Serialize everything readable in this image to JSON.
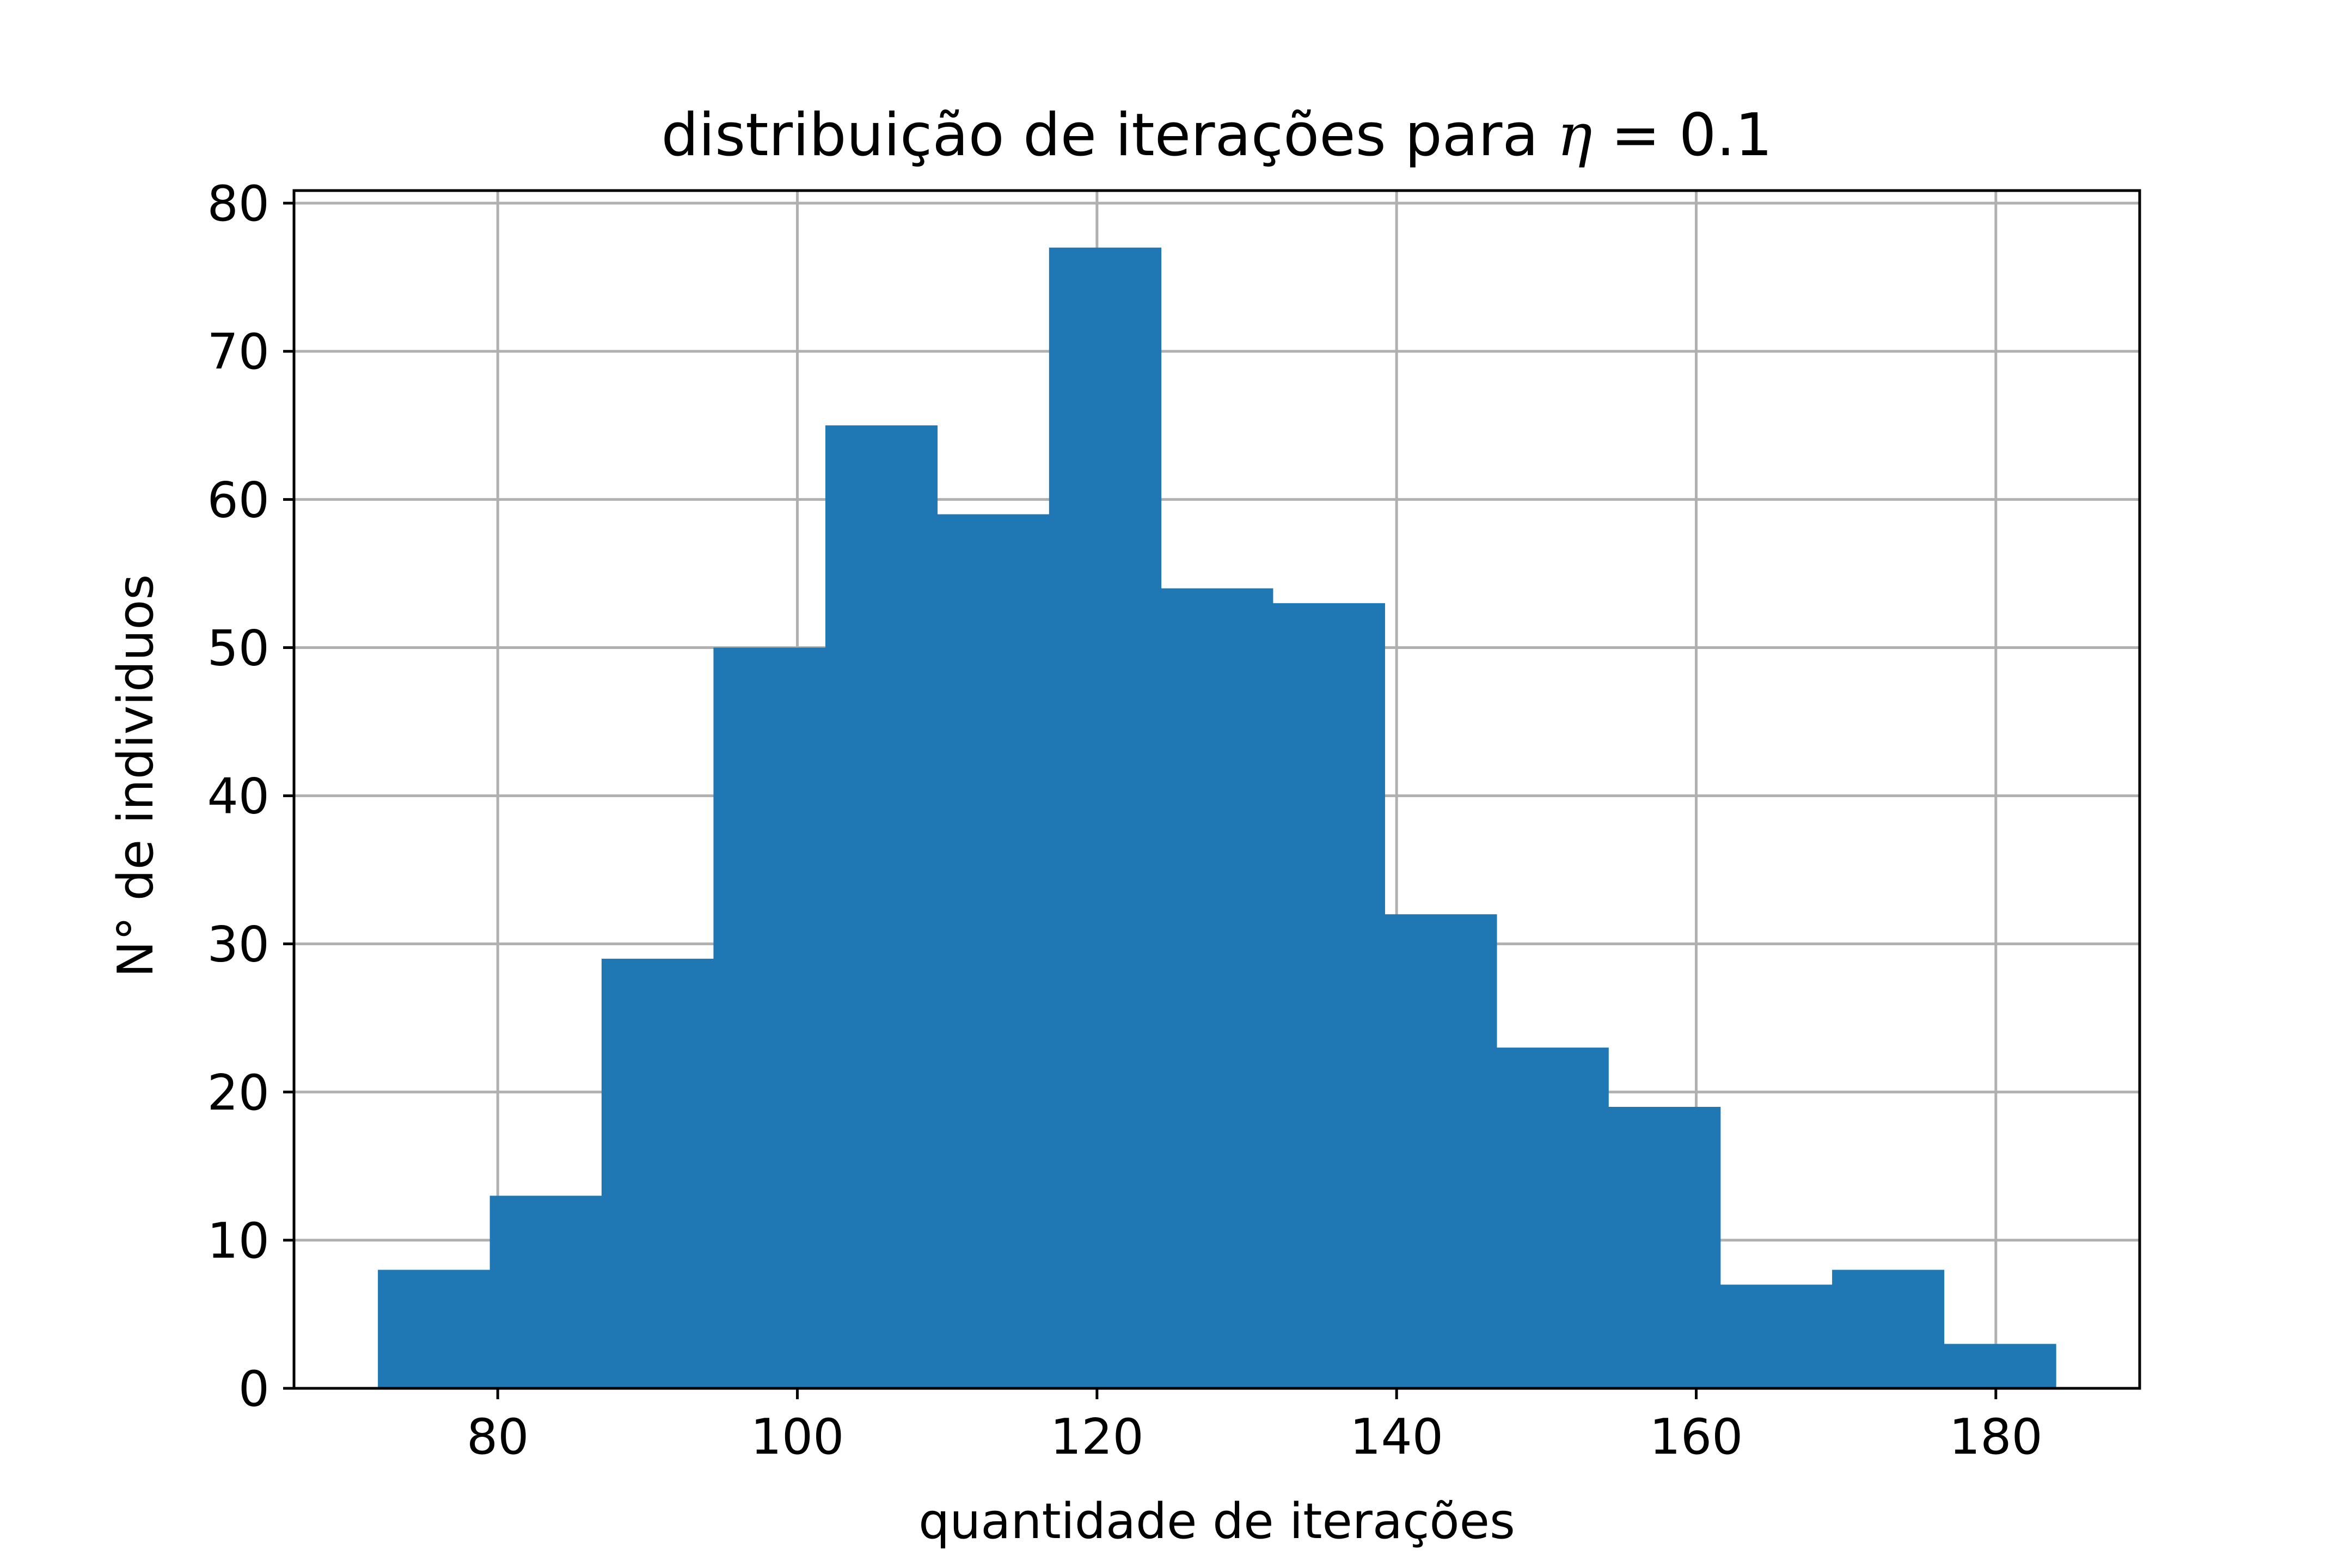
{
  "chart_data": {
    "type": "bar",
    "title_prefix": "distribuição de iterações para ",
    "title_symbol": "η",
    "title_suffix": " = 0.1",
    "xlabel": "quantidade de iterações",
    "ylabel": "N° de individuos",
    "xlim": [
      66.4,
      189.6
    ],
    "ylim": [
      0,
      80.85
    ],
    "xticks": [
      80,
      100,
      120,
      140,
      160,
      180
    ],
    "yticks": [
      0,
      10,
      20,
      30,
      40,
      50,
      60,
      70,
      80
    ],
    "grid": true,
    "bin_edges": [
      72,
      79.47,
      86.93,
      94.4,
      101.87,
      109.33,
      116.8,
      124.27,
      131.73,
      139.2,
      146.67,
      154.13,
      161.6,
      169.07,
      176.53,
      184
    ],
    "values": [
      8,
      13,
      29,
      50,
      65,
      59,
      77,
      54,
      53,
      32,
      23,
      19,
      7,
      8,
      3
    ],
    "colors": {
      "bar": "#1f77b4",
      "grid": "#b0b0b0",
      "axis": "#000000"
    }
  }
}
